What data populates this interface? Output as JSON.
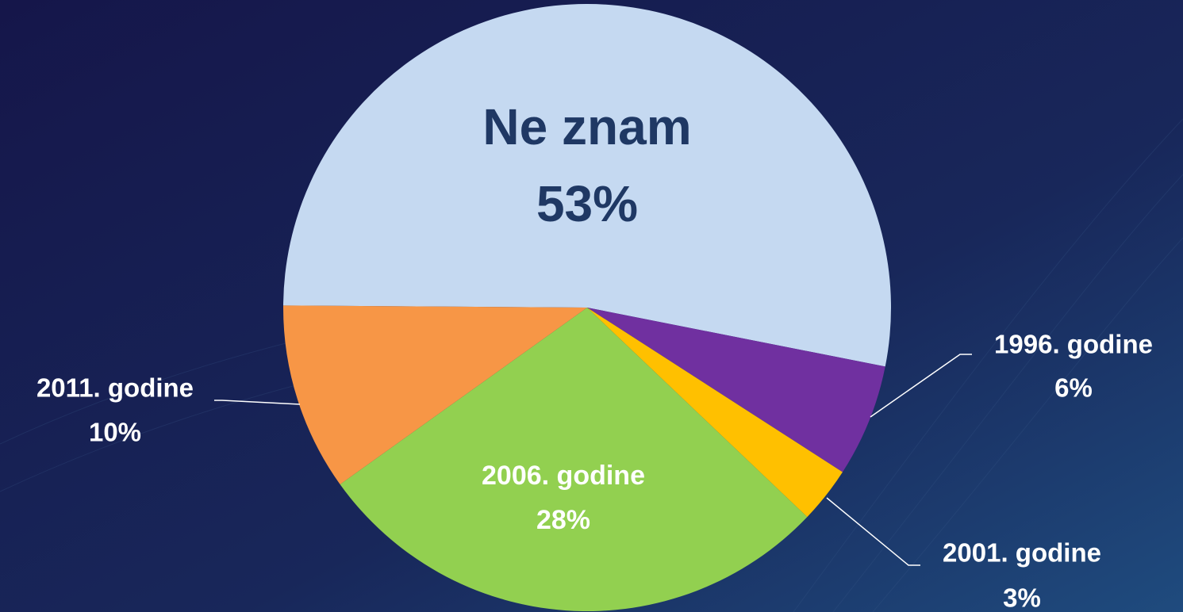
{
  "chart_data": {
    "type": "pie",
    "categories": [
      "Ne znam",
      "1996. godine",
      "2001. godine",
      "2006. godine",
      "2011. godine"
    ],
    "values": [
      53,
      6,
      3,
      28,
      10
    ],
    "value_labels": [
      "53%",
      "6%",
      "3%",
      "28%",
      "10%"
    ],
    "colors": [
      "#c5d9f1",
      "#7030a0",
      "#ffc000",
      "#92d050",
      "#f79646"
    ]
  }
}
